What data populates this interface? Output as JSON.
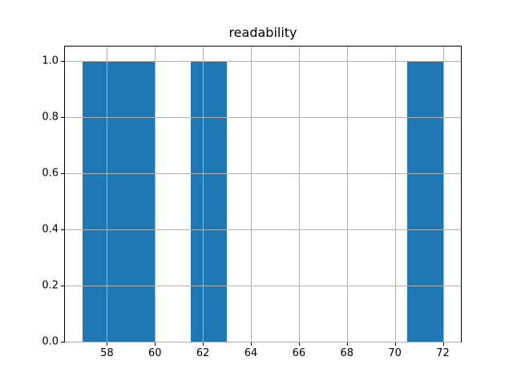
{
  "figure": {
    "background": "#ffffff"
  },
  "chart_data": {
    "type": "bar",
    "subtype": "histogram",
    "title": "readability",
    "xlabel": "",
    "ylabel": "",
    "bin_edges": [
      57,
      58.5,
      60,
      61.5,
      63,
      64.5,
      66,
      67.5,
      69,
      70.5,
      72
    ],
    "counts": [
      1,
      1,
      0,
      1,
      0,
      0,
      0,
      0,
      0,
      1
    ],
    "xlim": [
      56.25,
      72.75
    ],
    "ylim": [
      0,
      1.05
    ],
    "xticks": [
      58,
      60,
      62,
      64,
      66,
      68,
      70,
      72
    ],
    "xtick_labels": [
      "58",
      "60",
      "62",
      "64",
      "66",
      "68",
      "70",
      "72"
    ],
    "yticks": [
      0.0,
      0.2,
      0.4,
      0.6,
      0.8,
      1.0
    ],
    "ytick_labels": [
      "0.0",
      "0.2",
      "0.4",
      "0.6",
      "0.8",
      "1.0"
    ],
    "bar_color": "#1f77b4",
    "grid": true,
    "grid_above_bars": true,
    "grid_color": "#b0b0b0",
    "spine_color": "#000000",
    "legend": null
  }
}
